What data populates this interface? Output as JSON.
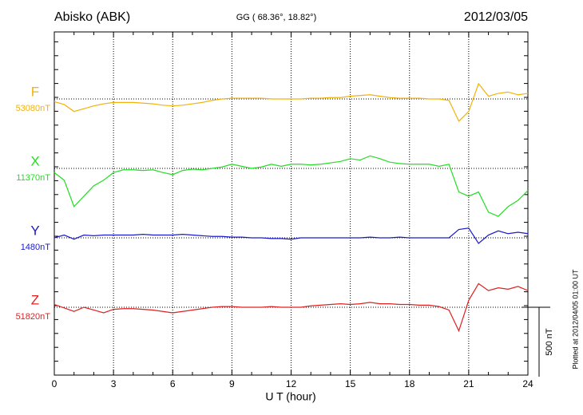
{
  "chart_data": {
    "type": "line",
    "title": "Abisko (ABK)",
    "subtitle": "GG ( 68.36°,  18.82°)",
    "date": "2012/03/05",
    "xlabel": "U T (hour)",
    "footnote": "Plotted at 2012/04/05 01:00 UT",
    "xlim": [
      0,
      24
    ],
    "xticks": [
      0,
      3,
      6,
      9,
      12,
      15,
      18,
      21,
      24
    ],
    "grid": true,
    "scale_bar": {
      "value": 500,
      "label": "500 nT"
    },
    "x": [
      0,
      0.5,
      1,
      1.5,
      2,
      2.5,
      3,
      3.5,
      4,
      4.5,
      5,
      5.5,
      6,
      6.5,
      7,
      7.5,
      8,
      8.5,
      9,
      9.5,
      10,
      10.5,
      11,
      11.5,
      12,
      12.5,
      13,
      13.5,
      14,
      14.5,
      15,
      15.5,
      16,
      16.5,
      17,
      17.5,
      18,
      18.5,
      19,
      19.5,
      20,
      20.5,
      21,
      21.5,
      22,
      22.5,
      23,
      23.5,
      24
    ],
    "series": [
      {
        "name": "F",
        "color": "#f2b20a",
        "baseline": {
          "value": 53080,
          "label": "53080nT"
        },
        "values": [
          53060,
          53040,
          52990,
          53010,
          53030,
          53045,
          53055,
          53055,
          53055,
          53050,
          53045,
          53035,
          53030,
          53035,
          53045,
          53055,
          53070,
          53080,
          53085,
          53085,
          53085,
          53085,
          53080,
          53080,
          53080,
          53080,
          53085,
          53085,
          53090,
          53090,
          53100,
          53105,
          53110,
          53100,
          53090,
          53085,
          53085,
          53085,
          53080,
          53080,
          53070,
          52920,
          52990,
          53190,
          53100,
          53120,
          53130,
          53110,
          53120
        ]
      },
      {
        "name": "X",
        "color": "#22dd22",
        "baseline": {
          "value": 11370,
          "label": "11370nT"
        },
        "values": [
          11340,
          11285,
          11095,
          11170,
          11245,
          11285,
          11340,
          11360,
          11360,
          11355,
          11360,
          11340,
          11325,
          11355,
          11365,
          11360,
          11370,
          11380,
          11400,
          11385,
          11370,
          11380,
          11400,
          11385,
          11400,
          11400,
          11395,
          11400,
          11410,
          11420,
          11440,
          11430,
          11460,
          11440,
          11415,
          11405,
          11400,
          11400,
          11400,
          11385,
          11400,
          11200,
          11170,
          11200,
          11055,
          11025,
          11095,
          11140,
          11210
        ]
      },
      {
        "name": "Y",
        "color": "#1a1acc",
        "baseline": {
          "value": 1480,
          "label": "1480nT"
        },
        "values": [
          1480,
          1500,
          1470,
          1500,
          1495,
          1500,
          1500,
          1500,
          1500,
          1505,
          1500,
          1500,
          1500,
          1505,
          1500,
          1495,
          1490,
          1490,
          1485,
          1485,
          1480,
          1480,
          1475,
          1475,
          1470,
          1480,
          1480,
          1480,
          1480,
          1480,
          1480,
          1480,
          1485,
          1480,
          1480,
          1485,
          1480,
          1480,
          1480,
          1480,
          1480,
          1540,
          1550,
          1440,
          1500,
          1530,
          1510,
          1520,
          1510
        ]
      },
      {
        "name": "Z",
        "color": "#e02020",
        "baseline": {
          "value": 51820,
          "label": "51820nT"
        },
        "values": [
          51840,
          51815,
          51790,
          51820,
          51800,
          51780,
          51805,
          51810,
          51810,
          51805,
          51800,
          51790,
          51780,
          51790,
          51800,
          51810,
          51820,
          51825,
          51825,
          51820,
          51820,
          51820,
          51825,
          51820,
          51820,
          51820,
          51830,
          51835,
          51840,
          51845,
          51840,
          51845,
          51855,
          51845,
          51845,
          51840,
          51840,
          51835,
          51835,
          51825,
          51800,
          51650,
          51870,
          51990,
          51940,
          51960,
          51950,
          51970,
          51940
        ]
      }
    ]
  }
}
